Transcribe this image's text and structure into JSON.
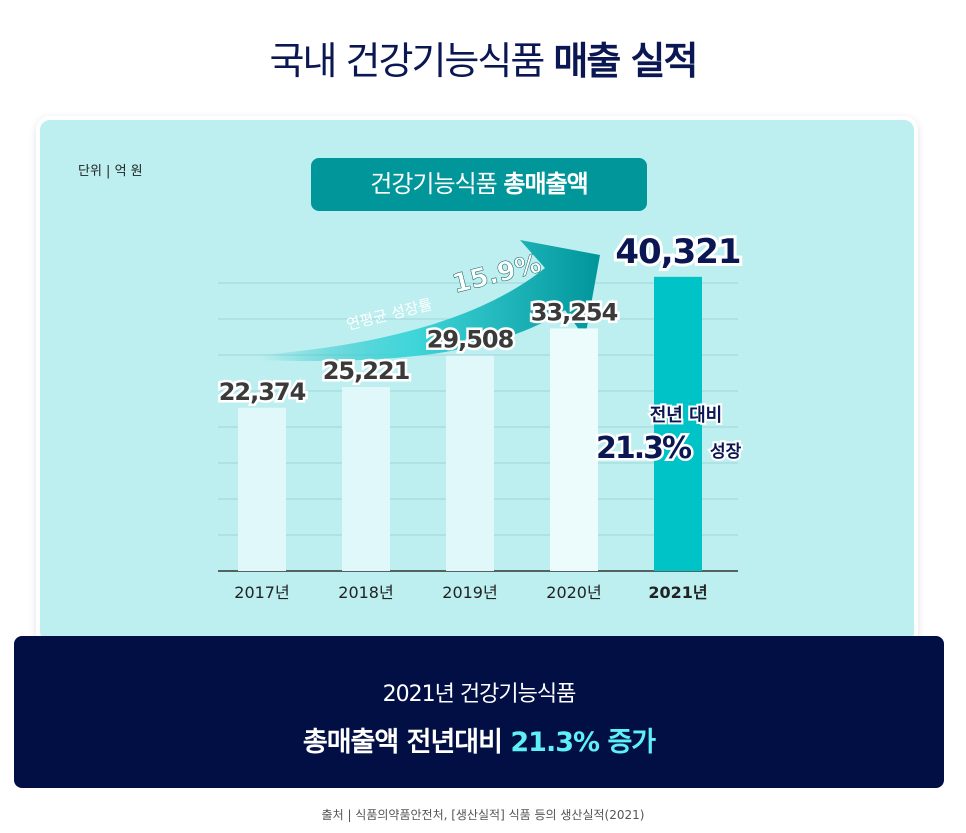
{
  "title": {
    "normal": "국내 건강기능식품",
    "bold": "매출 실적"
  },
  "unit": "단위 | 억 원",
  "pill": {
    "normal": "건강기능식품",
    "bold": "총매출액"
  },
  "arrow": {
    "label": "연평균 성장률",
    "value": "15.9%"
  },
  "annotation": {
    "line1": "전년 대비",
    "pct": "21.3%",
    "suffix": "성장"
  },
  "summary": {
    "line1": "2021년 건강기능식품",
    "line2_prefix": "총매출액 전년대비",
    "line2_highlight": "21.3% 증가"
  },
  "source": "출처 | 식품의약품안전처, [생산실적] 식품 등의 생산실적(2021)",
  "colors": {
    "bar": "#e0f8fa",
    "highlight_bar": "#00c3c8",
    "navy": "#020f45",
    "teal": "#00969a"
  },
  "chart_data": {
    "type": "bar",
    "title": "건강기능식품 총매출액",
    "categories": [
      "2017년",
      "2018년",
      "2019년",
      "2020년",
      "2021년"
    ],
    "values": [
      22374,
      25221,
      29508,
      33254,
      40321
    ],
    "value_labels": [
      "22,374",
      "25,221",
      "29,508",
      "33,254",
      "40,321"
    ],
    "ylabel": "억 원",
    "ylim": [
      0,
      44000
    ],
    "grid": true,
    "highlight_index": 4
  }
}
